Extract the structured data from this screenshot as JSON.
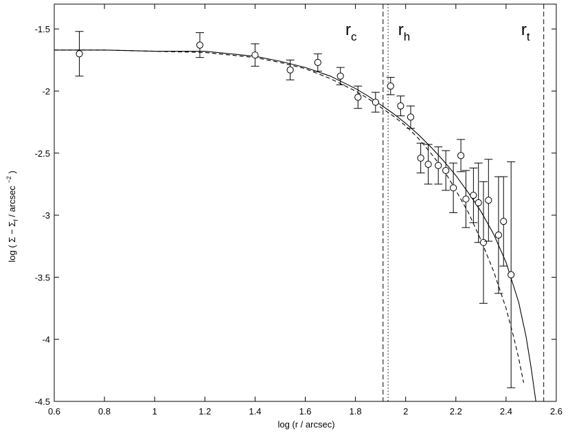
{
  "chart_data": {
    "type": "scatter",
    "title": "",
    "xlabel": "log (r / arcsec)",
    "ylabel": {
      "prefix": "log ( ",
      "sigma1": "Σ",
      "minus": " − ",
      "sigma2": "Σ",
      "sigma2_sub": "f",
      "unit": " / arcsec ",
      "exponent": "−2",
      "suffix": " )"
    },
    "xlim": [
      0.6,
      2.6
    ],
    "ylim": [
      -4.5,
      -1.3
    ],
    "x_ticks": [
      0.6,
      0.8,
      1.0,
      1.2,
      1.4,
      1.6,
      1.8,
      2.0,
      2.2,
      2.4,
      2.6
    ],
    "x_tick_labels": [
      "0.6",
      "0.8",
      "1",
      "1.2",
      "1.4",
      "1.6",
      "1.8",
      "2",
      "2.2",
      "2.4",
      "2.6"
    ],
    "y_ticks": [
      -1.5,
      -2.0,
      -2.5,
      -3.0,
      -3.5,
      -4.0,
      -4.5
    ],
    "y_tick_labels": [
      "-1.5",
      "-2",
      "-2.5",
      "-3",
      "-3.5",
      "-4",
      "-4.5"
    ],
    "grid": false,
    "legend": "none",
    "points": [
      {
        "x": 0.7,
        "y": -1.7,
        "err": 0.18
      },
      {
        "x": 1.18,
        "y": -1.63,
        "err": 0.1
      },
      {
        "x": 1.4,
        "y": -1.71,
        "err": 0.09
      },
      {
        "x": 1.54,
        "y": -1.83,
        "err": 0.08
      },
      {
        "x": 1.65,
        "y": -1.77,
        "err": 0.07
      },
      {
        "x": 1.74,
        "y": -1.88,
        "err": 0.07
      },
      {
        "x": 1.81,
        "y": -2.05,
        "err": 0.09
      },
      {
        "x": 1.88,
        "y": -2.09,
        "err": 0.08
      },
      {
        "x": 1.94,
        "y": -1.96,
        "err": 0.07
      },
      {
        "x": 1.98,
        "y": -2.12,
        "err": 0.08
      },
      {
        "x": 2.02,
        "y": -2.21,
        "err": 0.09
      },
      {
        "x": 2.06,
        "y": -2.54,
        "err": 0.12
      },
      {
        "x": 2.09,
        "y": -2.59,
        "err": 0.16
      },
      {
        "x": 2.13,
        "y": -2.6,
        "err": 0.15
      },
      {
        "x": 2.16,
        "y": -2.64,
        "err": 0.16
      },
      {
        "x": 2.19,
        "y": -2.78,
        "err": 0.2
      },
      {
        "x": 2.22,
        "y": -2.52,
        "err": 0.13
      },
      {
        "x": 2.24,
        "y": -2.87,
        "err": 0.23
      },
      {
        "x": 2.27,
        "y": -2.84,
        "err": 0.22
      },
      {
        "x": 2.29,
        "y": -2.9,
        "err": 0.32
      },
      {
        "x": 2.31,
        "y": -3.22,
        "err": 0.49
      },
      {
        "x": 2.33,
        "y": -2.88,
        "err": 0.33
      },
      {
        "x": 2.37,
        "y": -3.16,
        "err": 0.47
      },
      {
        "x": 2.39,
        "y": -3.05,
        "err": 0.36
      },
      {
        "x": 2.42,
        "y": -3.48,
        "err": 0.91
      }
    ],
    "model_solid": {
      "name": "",
      "style": "solid",
      "x": [
        0.6,
        0.8,
        1.0,
        1.2,
        1.4,
        1.5,
        1.6,
        1.7,
        1.8,
        1.85,
        1.9,
        1.95,
        2.0,
        2.05,
        2.1,
        2.15,
        2.2,
        2.25,
        2.3,
        2.35,
        2.4,
        2.45,
        2.48,
        2.5,
        2.52
      ],
      "y": [
        -1.67,
        -1.67,
        -1.68,
        -1.68,
        -1.72,
        -1.76,
        -1.81,
        -1.88,
        -1.98,
        -2.04,
        -2.11,
        -2.18,
        -2.26,
        -2.35,
        -2.45,
        -2.56,
        -2.68,
        -2.82,
        -2.97,
        -3.15,
        -3.38,
        -3.7,
        -3.98,
        -4.23,
        -4.52
      ]
    },
    "model_dashed": {
      "name": "",
      "style": "dashed",
      "x": [
        0.6,
        0.8,
        1.0,
        1.2,
        1.4,
        1.5,
        1.6,
        1.7,
        1.8,
        1.85,
        1.9,
        1.95,
        2.0,
        2.05,
        2.1,
        2.15,
        2.2,
        2.25,
        2.3,
        2.35,
        2.4,
        2.43,
        2.45,
        2.47
      ],
      "y": [
        -1.67,
        -1.67,
        -1.68,
        -1.69,
        -1.73,
        -1.77,
        -1.82,
        -1.9,
        -2.0,
        -2.06,
        -2.13,
        -2.2,
        -2.28,
        -2.38,
        -2.5,
        -2.63,
        -2.8,
        -2.98,
        -3.2,
        -3.45,
        -3.75,
        -3.98,
        -4.15,
        -4.35
      ]
    },
    "vertical_lines": [
      {
        "x": 1.91,
        "style": "dashed"
      },
      {
        "x": 1.93,
        "style": "dotted"
      },
      {
        "x": 2.55,
        "style": "dashed"
      }
    ],
    "annotations": [
      {
        "base": "r",
        "sub": "c",
        "x": 1.76,
        "y": -1.55
      },
      {
        "base": "r",
        "sub": "h",
        "x": 1.97,
        "y": -1.55
      },
      {
        "base": "r",
        "sub": "t",
        "x": 2.46,
        "y": -1.55
      }
    ]
  }
}
